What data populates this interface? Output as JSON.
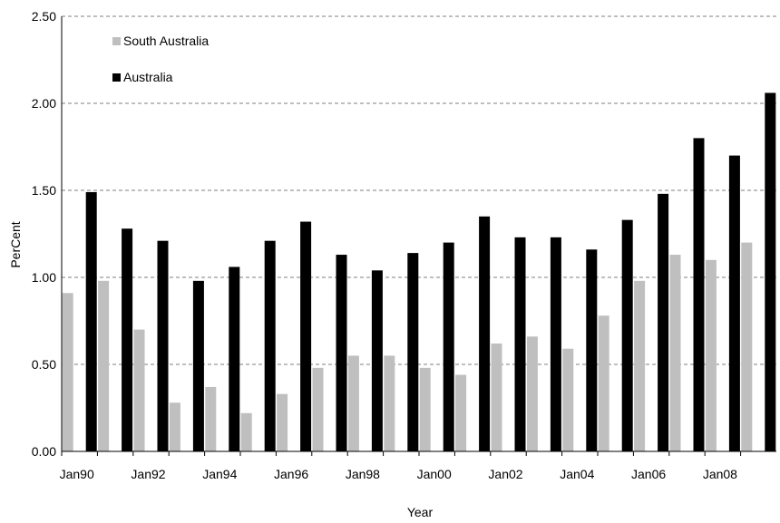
{
  "chart_data": {
    "type": "bar",
    "title": "",
    "xlabel": "Year",
    "ylabel": "PerCent",
    "ylim": [
      0,
      2.5
    ],
    "yticks": [
      "0.00",
      "0.50",
      "1.00",
      "1.50",
      "2.00",
      "2.50"
    ],
    "grid": "horizontal-dashed",
    "legend_placement": "top-left",
    "categories": [
      "Jan90",
      "Jan91",
      "Jan92",
      "Jan93",
      "Jan94",
      "Jan95",
      "Jan96",
      "Jan97",
      "Jan98",
      "Jan99",
      "Jan00",
      "Jan01",
      "Jan02",
      "Jan03",
      "Jan04",
      "Jan05",
      "Jan06",
      "Jan07",
      "Jan08",
      "Jan09"
    ],
    "xtick_labels": [
      "Jan90",
      "Jan92",
      "Jan94",
      "Jan96",
      "Jan98",
      "Jan00",
      "Jan02",
      "Jan04",
      "Jan06",
      "Jan08"
    ],
    "series": [
      {
        "name": "South Australia",
        "color": "#bfbfbf",
        "values": [
          0.91,
          0.98,
          0.7,
          0.28,
          0.37,
          0.22,
          0.33,
          0.48,
          0.55,
          0.55,
          0.48,
          0.44,
          0.62,
          0.66,
          0.59,
          0.78,
          0.98,
          1.13,
          1.1,
          1.2
        ]
      },
      {
        "name": "Australia",
        "color": "#000000",
        "values": [
          1.49,
          1.28,
          1.21,
          0.98,
          1.06,
          1.21,
          1.32,
          1.13,
          1.04,
          1.14,
          1.2,
          1.35,
          1.23,
          1.23,
          1.16,
          1.33,
          1.48,
          1.8,
          1.7,
          2.06
        ]
      }
    ]
  }
}
